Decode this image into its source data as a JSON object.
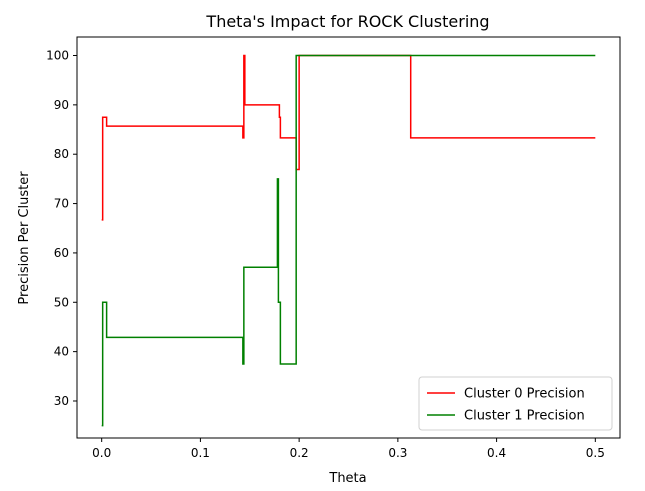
{
  "chart_data": {
    "type": "line",
    "title": "Theta's Impact for ROCK Clustering",
    "xlabel": "Theta",
    "ylabel": "Precision Per Cluster",
    "xlim": [
      -0.025,
      0.525
    ],
    "ylim": [
      22.5,
      103.75
    ],
    "xticks": [
      0.0,
      0.1,
      0.2,
      0.3,
      0.4,
      0.5
    ],
    "xtick_labels": [
      "0.0",
      "0.1",
      "0.2",
      "0.3",
      "0.4",
      "0.5"
    ],
    "yticks": [
      30,
      40,
      50,
      60,
      70,
      80,
      90,
      100
    ],
    "ytick_labels": [
      "30",
      "40",
      "50",
      "60",
      "70",
      "80",
      "90",
      "100"
    ],
    "grid": false,
    "legend_position": "lower-right",
    "series": [
      {
        "name": "Cluster 0 Precision",
        "color": "#ff0000",
        "step": true,
        "x": [
          0.0,
          0.001,
          0.004,
          0.005,
          0.142,
          0.143,
          0.144,
          0.145,
          0.179,
          0.18,
          0.181,
          0.196,
          0.197,
          0.2,
          0.313,
          0.5
        ],
        "y": [
          66.7,
          87.5,
          87.5,
          85.7,
          85.7,
          83.3,
          100.0,
          90.0,
          90.0,
          87.5,
          83.3,
          83.3,
          76.9,
          100.0,
          83.3,
          83.3
        ]
      },
      {
        "name": "Cluster 1 Precision",
        "color": "#008000",
        "step": true,
        "x": [
          0.0,
          0.001,
          0.005,
          0.142,
          0.143,
          0.144,
          0.178,
          0.179,
          0.181,
          0.196,
          0.197,
          0.5
        ],
        "y": [
          25.0,
          50.0,
          42.9,
          42.9,
          37.5,
          57.1,
          75.0,
          50.0,
          37.5,
          37.5,
          100.0,
          100.0
        ]
      }
    ]
  }
}
